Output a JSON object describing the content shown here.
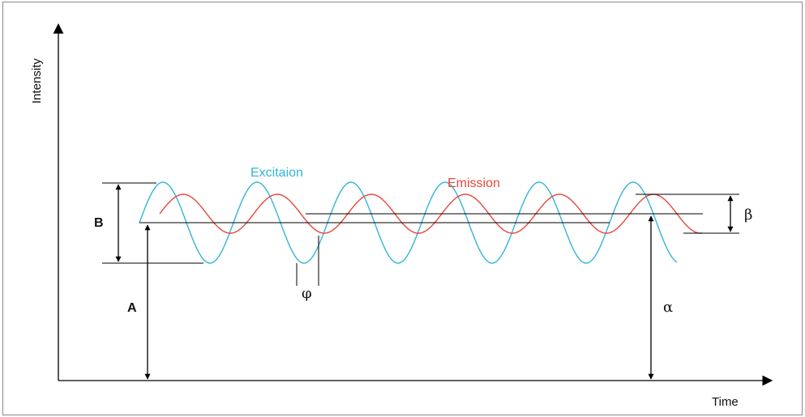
{
  "labels": {
    "y_axis": "Intensity",
    "x_axis": "Time",
    "excitation": "Excitaion",
    "emission": "Emission",
    "B": "B",
    "A": "A",
    "phi": "φ",
    "alpha": "α",
    "beta": "β"
  },
  "colors": {
    "excitation": "#33b5d6",
    "emission": "#e8473b",
    "axes": "#000000",
    "frame": "#8a8a8a"
  }
}
